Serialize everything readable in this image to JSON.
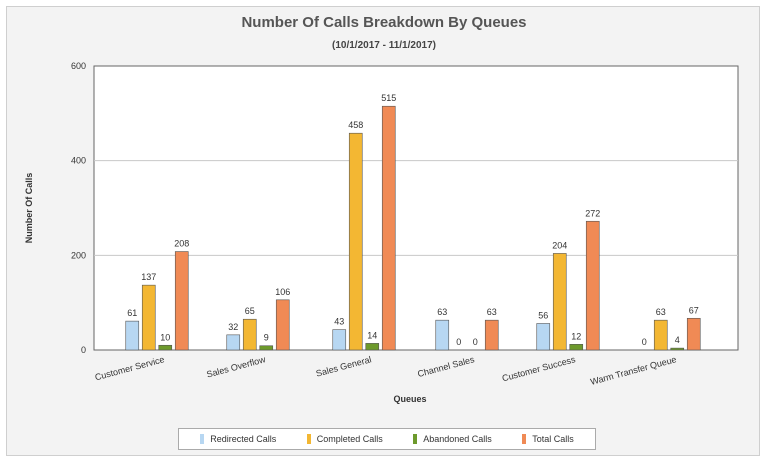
{
  "chart_data": {
    "type": "bar",
    "title": "Number Of Calls Breakdown By Queues",
    "subtitle": "(10/1/2017 - 11/1/2017)",
    "xlabel": "Queues",
    "ylabel": "Number Of Calls",
    "ylim": [
      0,
      600
    ],
    "yticks": [
      0,
      200,
      400,
      600
    ],
    "grid": true,
    "legend_position": "bottom",
    "categories": [
      "Customer Service",
      "Sales Overflow",
      "Sales General",
      "Channel Sales",
      "Customer Success",
      "Warm Transfer Queue"
    ],
    "series": [
      {
        "name": "Redirected Calls",
        "color": "#b7d7f2",
        "values": [
          61,
          32,
          43,
          63,
          56,
          0
        ]
      },
      {
        "name": "Completed Calls",
        "color": "#f3b733",
        "values": [
          137,
          65,
          458,
          0,
          204,
          63
        ]
      },
      {
        "name": "Abandoned Calls",
        "color": "#6d9a2c",
        "values": [
          10,
          9,
          14,
          0,
          12,
          4
        ]
      },
      {
        "name": "Total Calls",
        "color": "#f08a55",
        "values": [
          208,
          106,
          515,
          63,
          272,
          67
        ]
      }
    ]
  }
}
